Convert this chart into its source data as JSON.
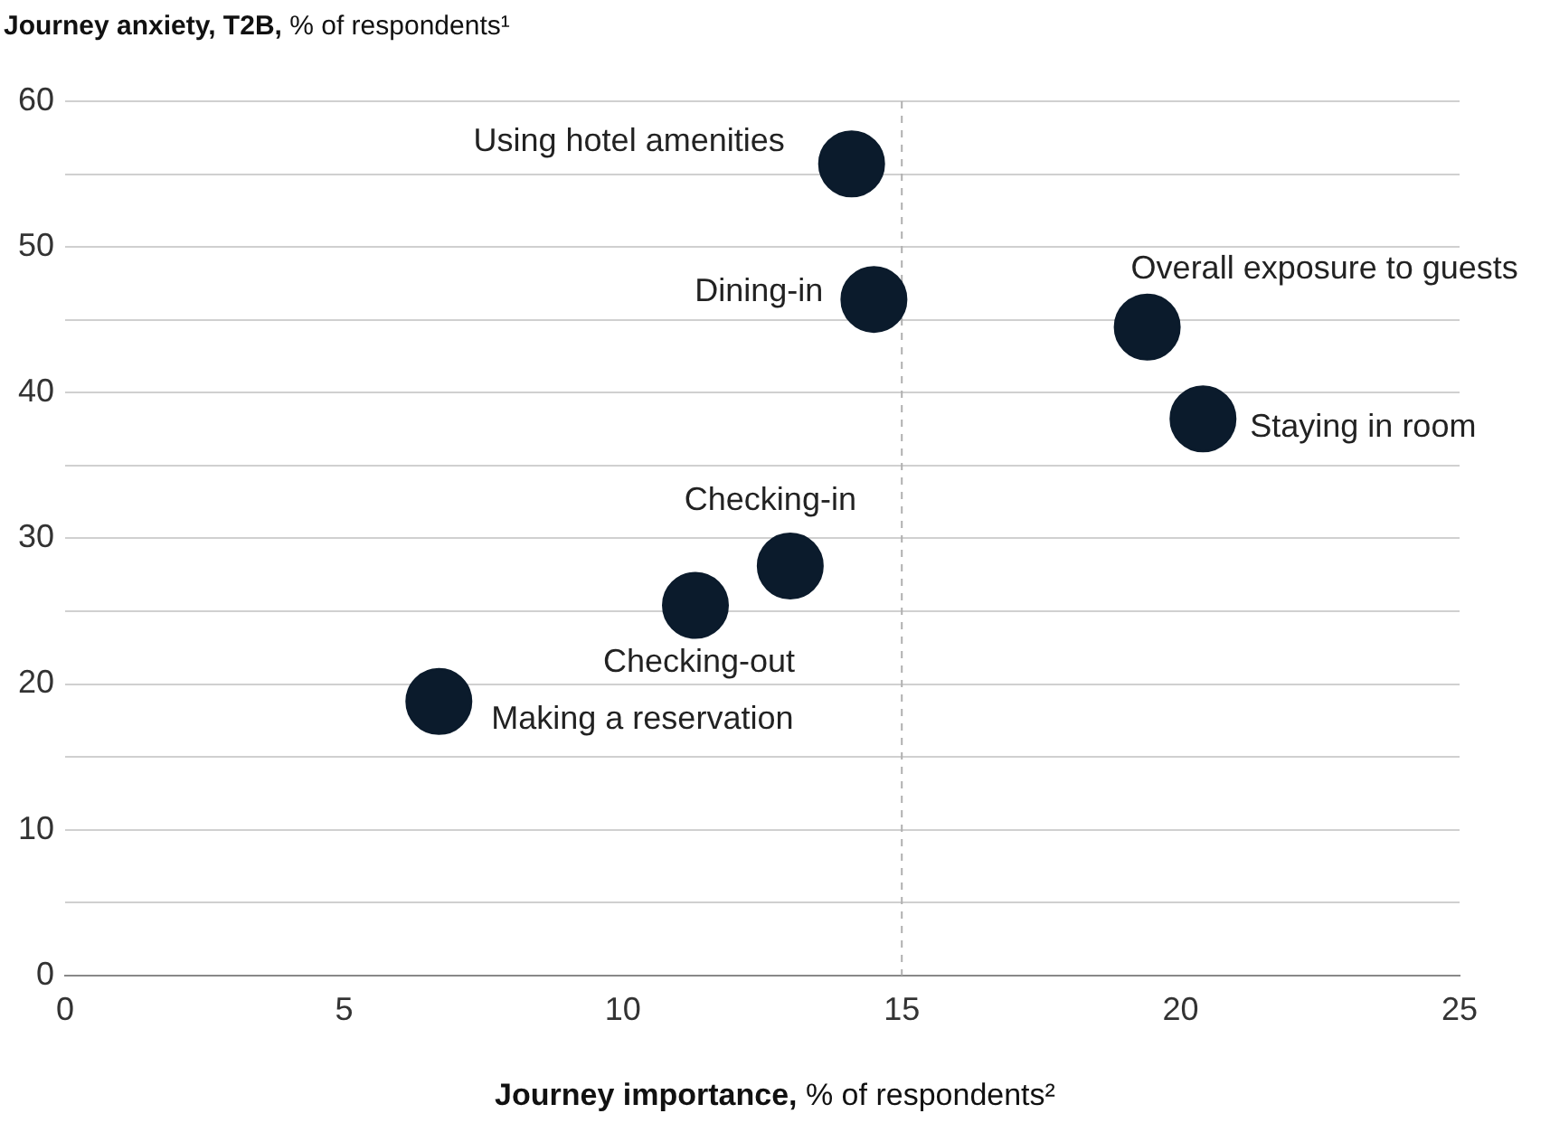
{
  "chart_data": {
    "type": "scatter",
    "ylabel": "Journey anxiety, T2B, % of respondents¹",
    "xlabel": "Journey importance, % of respondents²",
    "x": [
      14.1,
      14.5,
      19.4,
      20.4,
      13.0,
      11.3,
      6.7
    ],
    "values": [
      55.7,
      46.4,
      44.5,
      38.2,
      28.1,
      25.4,
      18.8
    ],
    "color": "#0b1b2c",
    "marker": "circle",
    "xlim": [
      0,
      25
    ],
    "xticks": [
      0,
      5,
      10,
      15,
      20,
      25
    ],
    "ylim": [
      0,
      60
    ],
    "yticks": [
      0,
      {
        "value": 5,
        "label": null
      },
      10,
      {
        "value": 15,
        "label": null
      },
      20,
      {
        "value": 25,
        "label": null
      },
      30,
      {
        "value": 35,
        "label": null
      },
      40,
      {
        "value": 45,
        "label": null
      },
      50,
      {
        "value": 55,
        "label": null
      },
      60
    ],
    "grid": "y",
    "legend": false,
    "ref_lines": [
      {
        "axis": "x",
        "value": 15,
        "color": "#b0b0b0",
        "line_style": "dashed"
      }
    ],
    "annotations": [
      {
        "text": "Using hotel amenities",
        "x": 14.1,
        "y": 55.7
      },
      {
        "text": "Dining-in",
        "x": 14.5,
        "y": 46.4
      },
      {
        "text": "Overall exposure to guests",
        "x": 19.4,
        "y": 44.5
      },
      {
        "text": "Staying in room",
        "x": 20.4,
        "y": 38.2
      },
      {
        "text": "Checking-in",
        "x": 13.0,
        "y": 28.1
      },
      {
        "text": "Checking-out",
        "x": 11.3,
        "y": 25.4
      },
      {
        "text": "Making a reservation",
        "x": 6.7,
        "y": 18.8
      }
    ]
  }
}
